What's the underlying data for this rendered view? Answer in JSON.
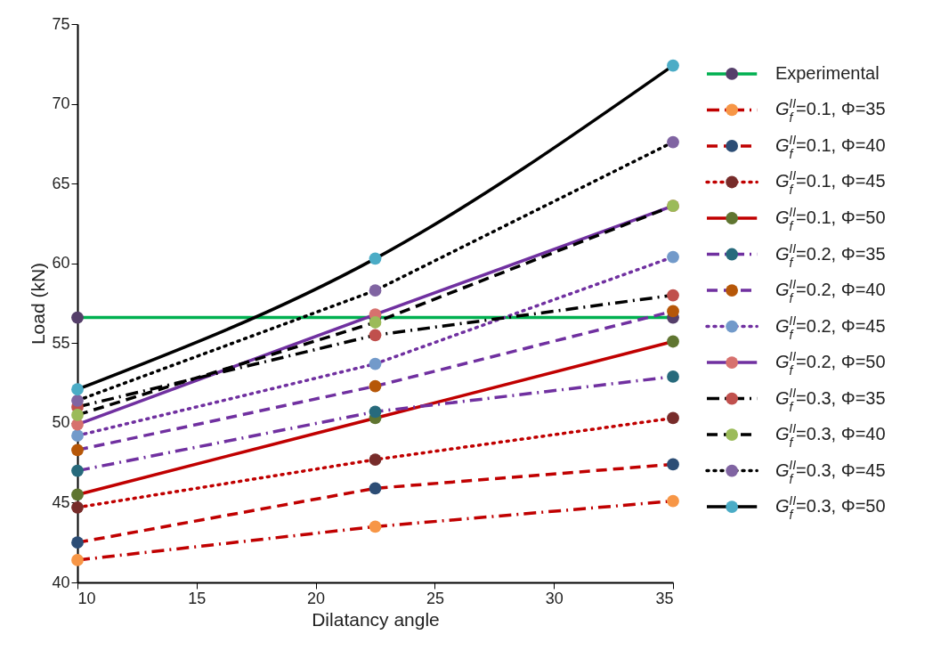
{
  "chart_data": {
    "type": "line",
    "xlabel": "Dilatancy angle",
    "ylabel": "Load (kN)",
    "x": [
      10,
      22.5,
      35
    ],
    "xlim": [
      10,
      35
    ],
    "xticks": [
      10,
      15,
      20,
      25,
      30,
      35
    ],
    "ylim": [
      40,
      75
    ],
    "yticks": [
      40,
      45,
      50,
      55,
      60,
      65,
      70,
      75
    ],
    "grid": false,
    "legend": "right",
    "marker": "circle",
    "series": [
      {
        "name": "Experimental",
        "color": "#00b050",
        "line_style": "solid",
        "colors": [
          "#553f6a",
          "#553f6a",
          "#553f6a"
        ],
        "values": [
          56.6,
          56.6,
          56.6
        ]
      },
      {
        "name": "G$_{f}$$^{II}$=0.1, Φ=35",
        "color": "#c00000",
        "line_style": "dashdot",
        "colors": [
          "#f79646",
          "#f79646",
          "#f79646"
        ],
        "values": [
          41.4,
          43.5,
          45.1
        ]
      },
      {
        "name": "G$_{f}$$^{II}$=0.1, Φ=40",
        "color": "#c00000",
        "line_style": "dashed",
        "colors": [
          "#2c4d75",
          "#2c4d75",
          "#2c4d75"
        ],
        "values": [
          42.5,
          45.9,
          47.4
        ]
      },
      {
        "name": "G$_{f}$$^{II}$=0.1, Φ=45",
        "color": "#c00000",
        "line_style": "dotted",
        "colors": [
          "#772c2a",
          "#772c2a",
          "#772c2a"
        ],
        "values": [
          44.7,
          47.7,
          50.3
        ]
      },
      {
        "name": "G$_{f}$$^{II}$=0.1, Φ=50",
        "color": "#c00000",
        "line_style": "solid",
        "colors": [
          "#5f7530",
          "#5f7530",
          "#5f7530"
        ],
        "values": [
          45.5,
          50.3,
          55.1
        ]
      },
      {
        "name": "G$_{f}$$^{II}$=0.2, Φ=35",
        "color": "#7030a0",
        "line_style": "dashdot",
        "colors": [
          "#276a7c",
          "#276a7c",
          "#276a7c"
        ],
        "values": [
          47.0,
          50.7,
          52.9
        ]
      },
      {
        "name": "G$_{f}$$^{II}$=0.2, Φ=40",
        "color": "#7030a0",
        "line_style": "dashed",
        "colors": [
          "#b65708",
          "#b65708",
          "#b65708"
        ],
        "values": [
          48.3,
          52.3,
          57.0
        ]
      },
      {
        "name": "G$_{f}$$^{II}$=0.2, Φ=45",
        "color": "#7030a0",
        "line_style": "dotted",
        "colors": [
          "#729aca",
          "#729aca",
          "#729aca"
        ],
        "values": [
          49.2,
          53.7,
          60.4
        ]
      },
      {
        "name": "G$_{f}$$^{II}$=0.2, Φ=50",
        "color": "#7030a0",
        "line_style": "solid",
        "colors": [
          "#d7716e",
          "#d7716e",
          "#d7716e"
        ],
        "values": [
          49.9,
          56.8,
          63.6
        ]
      },
      {
        "name": "G$_{f}$$^{II}$=0.3, Φ=35",
        "color": "#000000",
        "line_style": "dashdot",
        "colors": [
          "#c0504d",
          "#c0504d",
          "#c0504d"
        ],
        "values": [
          51.0,
          55.5,
          58.0
        ]
      },
      {
        "name": "G$_{f}$$^{II}$=0.3, Φ=40",
        "color": "#000000",
        "line_style": "dashed",
        "colors": [
          "#9bbb59",
          "#9bbb59",
          "#9bbb59"
        ],
        "values": [
          50.5,
          56.3,
          63.6
        ]
      },
      {
        "name": "G$_{f}$$^{II}$=0.3, Φ=45",
        "color": "#000000",
        "line_style": "dotted",
        "colors": [
          "#8064a2",
          "#8064a2",
          "#8064a2"
        ],
        "values": [
          51.4,
          58.3,
          67.6
        ]
      },
      {
        "name": "G$_{f}$$^{II}$=0.3, Φ=50",
        "color": "#000000",
        "line_style": "solid",
        "colors": [
          "#4bacc6",
          "#4bacc6",
          "#4bacc6"
        ],
        "values": [
          52.1,
          60.3,
          72.4
        ]
      }
    ]
  }
}
